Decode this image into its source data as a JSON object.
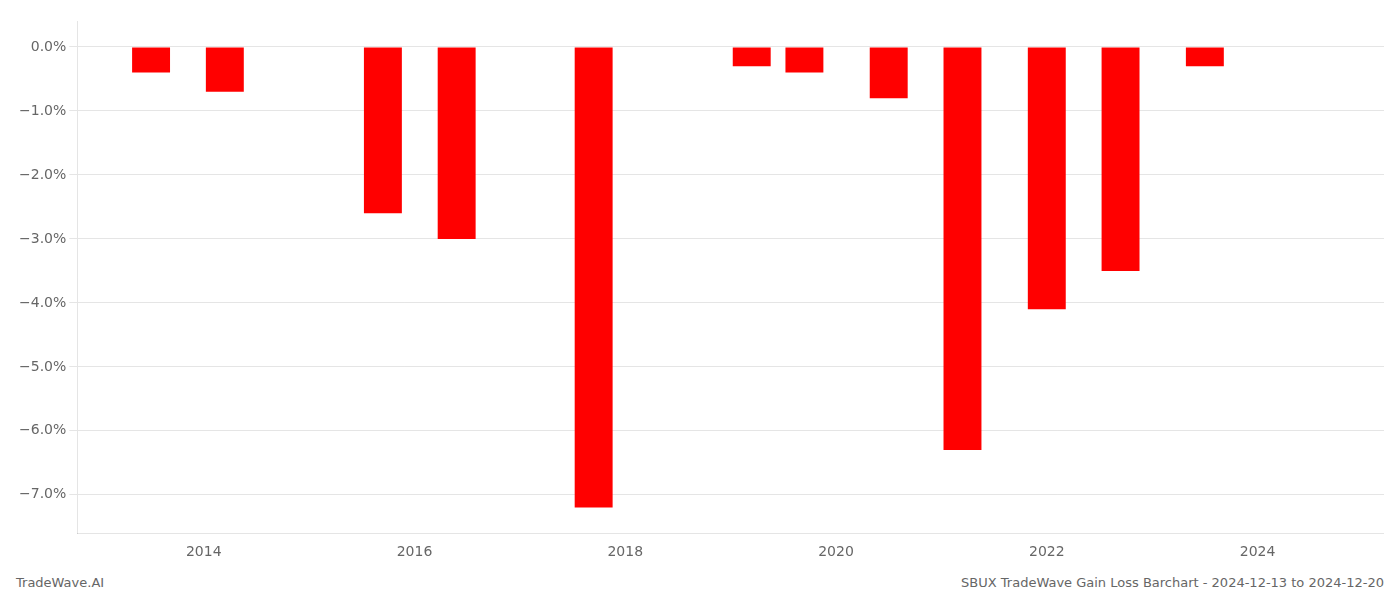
{
  "chart_data": {
    "type": "bar",
    "x": [
      2013.5,
      2014.2,
      2015.7,
      2016.4,
      2017.7,
      2019.2,
      2019.7,
      2020.5,
      2021.2,
      2022.0,
      2022.7,
      2023.5
    ],
    "values": [
      -0.004,
      -0.007,
      -0.026,
      -0.03,
      -0.072,
      -0.003,
      -0.004,
      -0.008,
      -0.063,
      -0.041,
      -0.035,
      -0.003
    ],
    "color": "#ff0000",
    "xlim": [
      2012.8,
      2025.2
    ],
    "xticks": [
      2014,
      2016,
      2018,
      2020,
      2022,
      2024
    ],
    "ylim": [
      -0.076,
      0.004
    ],
    "yticks": [
      {
        "value": 0.0,
        "label": "0.0%"
      },
      {
        "value": -0.01,
        "label": "−1.0%"
      },
      {
        "value": -0.02,
        "label": "−2.0%"
      },
      {
        "value": -0.03,
        "label": "−3.0%"
      },
      {
        "value": -0.04,
        "label": "−4.0%"
      },
      {
        "value": -0.05,
        "label": "−5.0%"
      },
      {
        "value": -0.06,
        "label": "−6.0%"
      },
      {
        "value": -0.07,
        "label": "−7.0%"
      }
    ],
    "grid": true,
    "annotations": [
      "TradeWave.AI",
      "SBUX TradeWave Gain Loss Barchart - 2024-12-13 to 2024-12-20"
    ]
  }
}
